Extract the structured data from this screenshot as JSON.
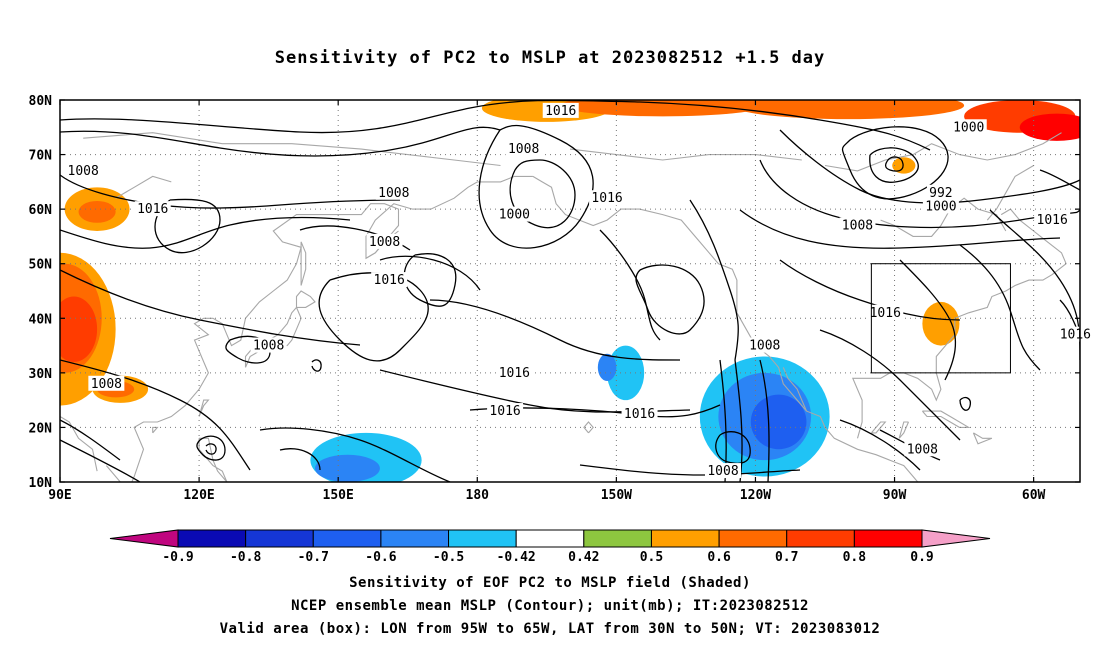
{
  "title": "Sensitivity of PC2 to MSLP at 2023082512 +1.5 day",
  "captions": {
    "line1": "Sensitivity of EOF PC2 to MSLP field (Shaded)",
    "line2": "NCEP ensemble mean MSLP (Contour); unit(mb); IT:2023082512",
    "line3": "Valid area (box): LON from 95W to 65W, LAT from 30N to 50N; VT: 2023083012"
  },
  "map": {
    "lat_labels": [
      "80N",
      "70N",
      "60N",
      "50N",
      "40N",
      "30N",
      "20N",
      "10N"
    ],
    "lon_labels": [
      "90E",
      "120E",
      "150E",
      "180",
      "150W",
      "120W",
      "90W",
      "60W"
    ],
    "valid_box": {
      "lon_from": "95W",
      "lon_to": "65W",
      "lat_from": "30N",
      "lat_to": "50N"
    },
    "contour_labels": [
      {
        "text": "1016",
        "lon": -162,
        "lat": 78
      },
      {
        "text": "1008",
        "lon": -170,
        "lat": 71
      },
      {
        "text": "1000",
        "lon": -74,
        "lat": 75
      },
      {
        "text": "992",
        "lon": -80,
        "lat": 63
      },
      {
        "text": "1000",
        "lon": -80,
        "lat": 60.5
      },
      {
        "text": "1008",
        "lon": 95,
        "lat": 67
      },
      {
        "text": "1016",
        "lon": 110,
        "lat": 60
      },
      {
        "text": "1008",
        "lon": 162,
        "lat": 63
      },
      {
        "text": "1008",
        "lon": 160,
        "lat": 54
      },
      {
        "text": "1000",
        "lon": -172,
        "lat": 59
      },
      {
        "text": "1016",
        "lon": -152,
        "lat": 62
      },
      {
        "text": "1008",
        "lon": -98,
        "lat": 57
      },
      {
        "text": "1016",
        "lon": -56,
        "lat": 58
      },
      {
        "text": "1016",
        "lon": 161,
        "lat": 47
      },
      {
        "text": "1016",
        "lon": -92,
        "lat": 41
      },
      {
        "text": "1016",
        "lon": -51,
        "lat": 37
      },
      {
        "text": "1008",
        "lon": 135,
        "lat": 35
      },
      {
        "text": "1008",
        "lon": -118,
        "lat": 35
      },
      {
        "text": "1016",
        "lon": -172,
        "lat": 30
      },
      {
        "text": "1008",
        "lon": 100,
        "lat": 28
      },
      {
        "text": "1016",
        "lon": -174,
        "lat": 23
      },
      {
        "text": "1016",
        "lon": -145,
        "lat": 22.5
      },
      {
        "text": "1008",
        "lon": -84,
        "lat": 16
      },
      {
        "text": "1008",
        "lon": -127,
        "lat": 12
      }
    ]
  },
  "colorbar": {
    "levels": [
      "-0.9",
      "-0.8",
      "-0.7",
      "-0.6",
      "-0.5",
      "-0.42",
      "0.42",
      "0.5",
      "0.6",
      "0.7",
      "0.8",
      "0.9"
    ],
    "colors": [
      "#c0067f",
      "#0a0ab4",
      "#1536d6",
      "#1e5ff0",
      "#2b84f5",
      "#20c3f5",
      "#ffffff",
      "#8dc63f",
      "#ff9f00",
      "#ff6a00",
      "#ff3c00",
      "#ff0000",
      "#f5a0c8"
    ]
  },
  "shading": [
    {
      "value": 0.5,
      "lon": -165,
      "lat": 78.5,
      "rx": 14,
      "ry": 2.5
    },
    {
      "value": 0.6,
      "lon": -140,
      "lat": 79,
      "rx": 22,
      "ry": 2
    },
    {
      "value": 0.6,
      "lon": -100,
      "lat": 79,
      "rx": 25,
      "ry": 2.5
    },
    {
      "value": 0.7,
      "lon": -63,
      "lat": 77,
      "rx": 12,
      "ry": 3
    },
    {
      "value": 0.8,
      "lon": -55,
      "lat": 75,
      "rx": 8,
      "ry": 2.5
    },
    {
      "value": 0.5,
      "lon": -88,
      "lat": 68,
      "rx": 2.5,
      "ry": 1.5
    },
    {
      "value": 0.5,
      "lon": 98,
      "lat": 60,
      "rx": 7,
      "ry": 4
    },
    {
      "value": 0.6,
      "lon": 98,
      "lat": 59.5,
      "rx": 4,
      "ry": 2
    },
    {
      "value": 0.5,
      "lon": 90,
      "lat": 38,
      "rx": 12,
      "ry": 14
    },
    {
      "value": 0.6,
      "lon": 91,
      "lat": 40,
      "rx": 8,
      "ry": 10
    },
    {
      "value": 0.7,
      "lon": 93,
      "lat": 38,
      "rx": 5,
      "ry": 6
    },
    {
      "value": 0.5,
      "lon": 103,
      "lat": 27,
      "rx": 6,
      "ry": 2.5
    },
    {
      "value": 0.6,
      "lon": 102,
      "lat": 27,
      "rx": 4,
      "ry": 1.5
    },
    {
      "value": 0.5,
      "lon": -80,
      "lat": 39,
      "rx": 4,
      "ry": 4
    },
    {
      "value": -0.5,
      "lon": -148,
      "lat": 30,
      "rx": 4,
      "ry": 5
    },
    {
      "value": -0.6,
      "lon": -152,
      "lat": 31,
      "rx": 2,
      "ry": 2.5
    },
    {
      "value": -0.5,
      "lon": -118,
      "lat": 22,
      "rx": 14,
      "ry": 11
    },
    {
      "value": -0.6,
      "lon": -118,
      "lat": 22,
      "rx": 10,
      "ry": 8
    },
    {
      "value": -0.7,
      "lon": -115,
      "lat": 21,
      "rx": 6,
      "ry": 5
    },
    {
      "value": -0.5,
      "lon": 156,
      "lat": 14,
      "rx": 12,
      "ry": 5
    },
    {
      "value": -0.6,
      "lon": 152,
      "lat": 12.5,
      "rx": 7,
      "ry": 2.5
    }
  ]
}
